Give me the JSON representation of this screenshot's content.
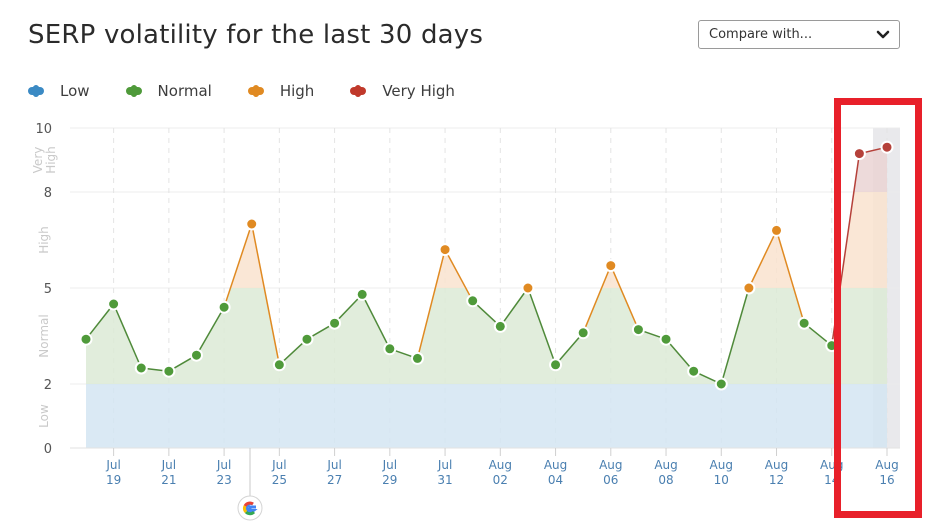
{
  "header": {
    "title": "SERP volatility for the last 30 days",
    "compare_select": {
      "value": "Compare with...",
      "icon": "chevron-down-icon"
    }
  },
  "legend": [
    {
      "label": "Low",
      "color": "#3b8ac4"
    },
    {
      "label": "Normal",
      "color": "#4f9a3a"
    },
    {
      "label": "High",
      "color": "#e08a22"
    },
    {
      "label": "Very High",
      "color": "#c0392b"
    }
  ],
  "colors": {
    "low_band": "#d4e5f2",
    "normal_band": "#dcead6",
    "high_band": "#f9e3cf",
    "very_high_band": "#ead3d4",
    "normal_line": "#4f8a3a",
    "highlight_column": "#e9e9ec",
    "annotation_box": "#e8202a"
  },
  "annotation": {
    "google_update_marker_icon": "google-g-icon",
    "highlight_box": "red-rectangle-around-last-two-days"
  },
  "chart_data": {
    "type": "area",
    "title": "SERP volatility for the last 30 days",
    "xlabel": "",
    "ylabel": "",
    "ylim": [
      0,
      10
    ],
    "yticks": [
      0,
      2,
      5,
      8,
      10
    ],
    "y_bands": [
      {
        "label": "Low",
        "from": 0,
        "to": 2
      },
      {
        "label": "Normal",
        "from": 2,
        "to": 5
      },
      {
        "label": "High",
        "from": 5,
        "to": 8
      },
      {
        "label": "Very High",
        "from": 8,
        "to": 10
      }
    ],
    "grid": true,
    "legend_position": "top-left",
    "x": [
      "Jul 18",
      "Jul 19",
      "Jul 20",
      "Jul 21",
      "Jul 22",
      "Jul 23",
      "Jul 24",
      "Jul 25",
      "Jul 26",
      "Jul 27",
      "Jul 28",
      "Jul 29",
      "Jul 30",
      "Jul 31",
      "Aug 01",
      "Aug 02",
      "Aug 03",
      "Aug 04",
      "Aug 05",
      "Aug 06",
      "Aug 07",
      "Aug 08",
      "Aug 09",
      "Aug 10",
      "Aug 11",
      "Aug 12",
      "Aug 13",
      "Aug 14",
      "Aug 15",
      "Aug 16"
    ],
    "x_tick_labels": [
      {
        "m": "Jul",
        "d": "19"
      },
      {
        "m": "Jul",
        "d": "21"
      },
      {
        "m": "Jul",
        "d": "23"
      },
      {
        "m": "Jul",
        "d": "25"
      },
      {
        "m": "Jul",
        "d": "27"
      },
      {
        "m": "Jul",
        "d": "29"
      },
      {
        "m": "Jul",
        "d": "31"
      },
      {
        "m": "Aug",
        "d": "02"
      },
      {
        "m": "Aug",
        "d": "04"
      },
      {
        "m": "Aug",
        "d": "06"
      },
      {
        "m": "Aug",
        "d": "08"
      },
      {
        "m": "Aug",
        "d": "10"
      },
      {
        "m": "Aug",
        "d": "12"
      },
      {
        "m": "Aug",
        "d": "14"
      },
      {
        "m": "Aug",
        "d": "16"
      }
    ],
    "series": [
      {
        "name": "Volatility",
        "values": [
          3.4,
          4.5,
          2.5,
          2.4,
          2.9,
          4.4,
          7.0,
          2.6,
          3.4,
          3.9,
          4.8,
          3.1,
          2.8,
          6.2,
          4.6,
          3.8,
          5.0,
          2.6,
          3.6,
          5.7,
          3.7,
          3.4,
          2.4,
          2.0,
          5.0,
          6.8,
          3.9,
          3.2,
          9.2,
          9.4
        ]
      }
    ],
    "annotations": [
      "Google update marker between Jul 23 and Jul 25",
      "Last two days (Aug 15-16) highlighted in red box"
    ]
  }
}
